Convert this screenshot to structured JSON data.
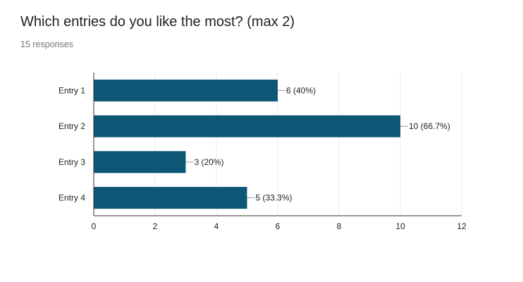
{
  "question": {
    "title": "Which entries do you like the most? (max 2)",
    "responses": "15 responses"
  },
  "colors": {
    "bar": "#0d5675",
    "grid": "#ebebeb",
    "axis": "#333333",
    "leader": "#999999"
  },
  "chart_data": {
    "type": "bar",
    "orientation": "horizontal",
    "categories": [
      "Entry 1",
      "Entry 2",
      "Entry 3",
      "Entry 4"
    ],
    "values": [
      6,
      10,
      3,
      5
    ],
    "data_labels": [
      "6 (40%)",
      "10 (66.7%)",
      "3 (20%)",
      "5 (33.3%)"
    ],
    "xlim": [
      0,
      12
    ],
    "xticks": [
      0,
      2,
      4,
      6,
      8,
      10,
      12
    ],
    "grid": true,
    "title": "",
    "xlabel": "",
    "ylabel": ""
  }
}
